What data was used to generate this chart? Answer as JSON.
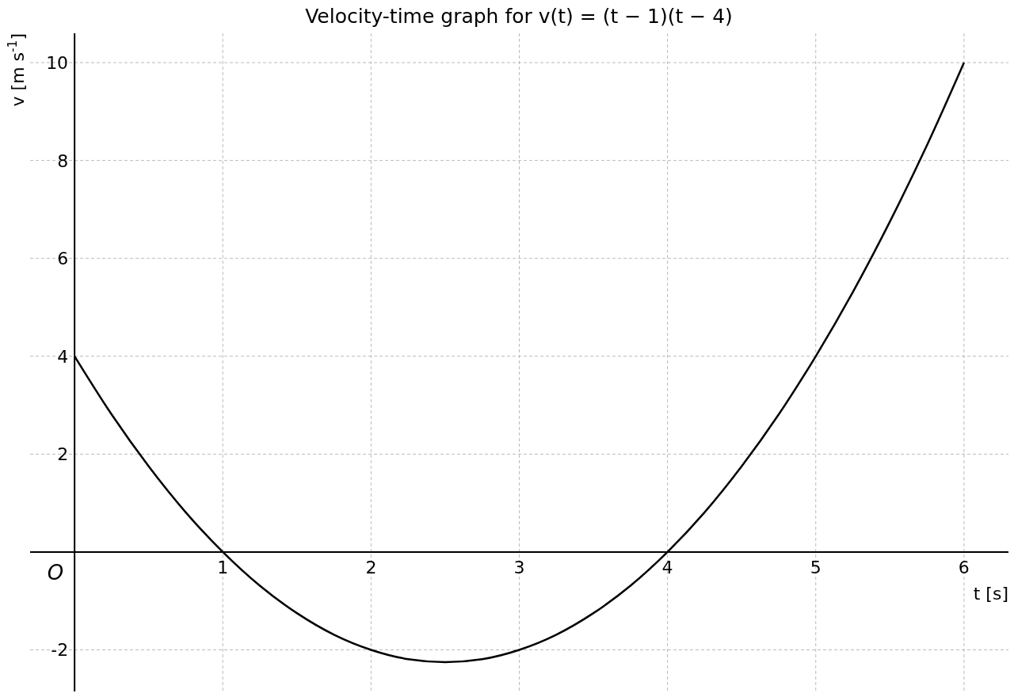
{
  "chart_data": {
    "type": "line",
    "title": "Velocity-time graph for v(t) = (t − 1)(t − 4)",
    "xlabel": "t [s]",
    "ylabel": "v [m s$^{-1}$]",
    "x": [
      0,
      0.25,
      0.5,
      0.75,
      1,
      1.25,
      1.5,
      1.75,
      2,
      2.25,
      2.5,
      2.75,
      3,
      3.25,
      3.5,
      3.75,
      4,
      4.25,
      4.5,
      4.75,
      5,
      5.25,
      5.5,
      5.75,
      6
    ],
    "series": [
      {
        "color": "#000000",
        "values": [
          4,
          2.81,
          1.75,
          0.81,
          0,
          -0.69,
          -1.25,
          -1.69,
          -2,
          -2.19,
          -2.25,
          -2.19,
          -2,
          -1.69,
          -1.25,
          -0.69,
          0,
          0.81,
          1.75,
          2.81,
          4,
          5.31,
          6.75,
          8.31,
          10
        ]
      }
    ],
    "xlim": [
      -0.3,
      6.3
    ],
    "ylim": [
      -2.85,
      10.6
    ],
    "xticks": [
      1,
      2,
      3,
      4,
      5,
      6
    ],
    "yticks": [
      -2,
      2,
      4,
      6,
      8,
      10
    ],
    "grid": true,
    "line_style": "solid",
    "marker": "none",
    "annotations": [
      "O"
    ]
  }
}
